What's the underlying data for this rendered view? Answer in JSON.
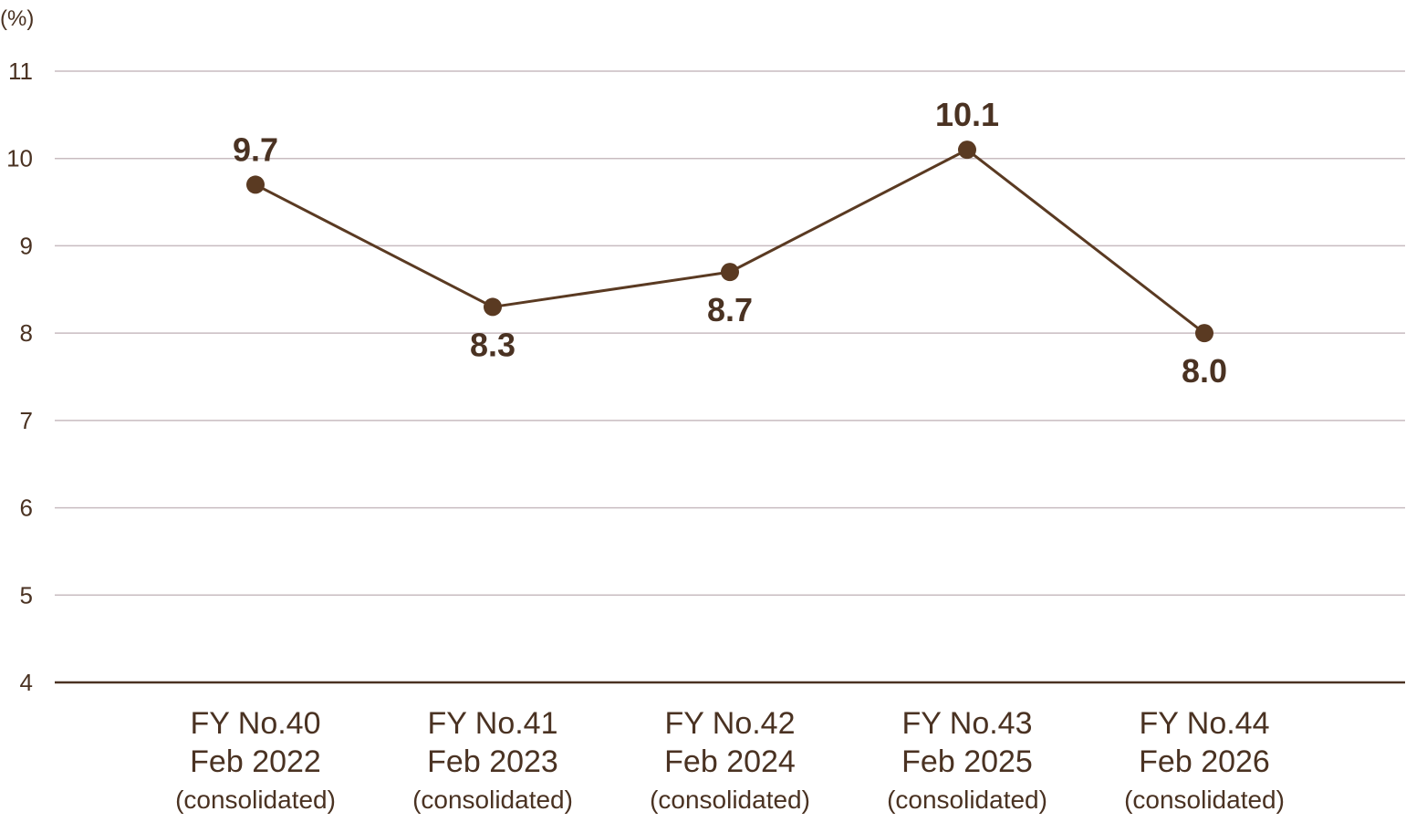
{
  "chart_data": {
    "type": "line",
    "unit_label": "(%)",
    "ylim": [
      4,
      11
    ],
    "y_ticks": [
      "4",
      "5",
      "6",
      "7",
      "8",
      "9",
      "10",
      "11"
    ],
    "grid": true,
    "categories": [
      {
        "line1": "FY No.40",
        "line2": "Feb 2022",
        "line3": "(consolidated)"
      },
      {
        "line1": "FY No.41",
        "line2": "Feb 2023",
        "line3": "(consolidated)"
      },
      {
        "line1": "FY No.42",
        "line2": "Feb 2024",
        "line3": "(consolidated)"
      },
      {
        "line1": "FY No.43",
        "line2": "Feb 2025",
        "line3": "(consolidated)"
      },
      {
        "line1": "FY No.44",
        "line2": "Feb 2026",
        "line3": "(consolidated)"
      }
    ],
    "series": [
      {
        "values": [
          9.7,
          8.3,
          8.7,
          10.1,
          8.0
        ],
        "labels": [
          "9.7",
          "8.3",
          "8.7",
          "10.1",
          "8.0"
        ],
        "label_positions": [
          "above",
          "below",
          "below",
          "above",
          "below"
        ]
      }
    ],
    "colors": {
      "line": "#5a3a22",
      "text": "#4a3222",
      "grid": "#c8bcc0",
      "baseline": "#4a3222"
    }
  }
}
